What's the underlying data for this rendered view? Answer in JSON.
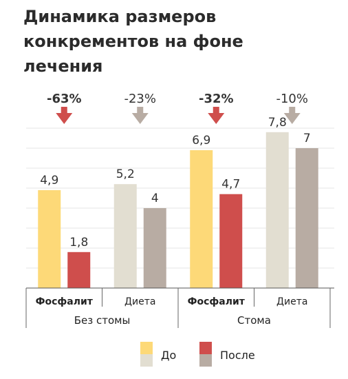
{
  "chart_data": {
    "type": "bar",
    "title": "Динамика размеров конкрементов на фоне лечения",
    "groups": [
      {
        "name": "Без стомы",
        "subgroups": [
          {
            "name": "Фосфалит",
            "bold": true,
            "values": [
              4.9,
              1.8
            ],
            "labels": [
              "4,9",
              "1,8"
            ],
            "change": "-63%",
            "change_bold": true,
            "arrow_color": "#cf4e4c"
          },
          {
            "name": "Диета",
            "bold": false,
            "values": [
              5.2,
              4.0
            ],
            "labels": [
              "5,2",
              "4"
            ],
            "change": "-23%",
            "change_bold": false,
            "arrow_color": "#b8aca3"
          }
        ]
      },
      {
        "name": "Стома",
        "subgroups": [
          {
            "name": "Фосфалит",
            "bold": true,
            "values": [
              6.9,
              4.7
            ],
            "labels": [
              "6,9",
              "4,7"
            ],
            "change": "-32%",
            "change_bold": true,
            "arrow_color": "#cf4e4c"
          },
          {
            "name": "Диета",
            "bold": false,
            "values": [
              7.8,
              7.0
            ],
            "labels": [
              "7,8",
              "7"
            ],
            "change": "-10%",
            "change_bold": false,
            "arrow_color": "#b8aca3"
          }
        ]
      }
    ],
    "colors": {
      "Фосфалит": {
        "before": "#fdd978",
        "after": "#cf4e4c"
      },
      "Диета": {
        "before": "#e2ded1",
        "after": "#b8aca3"
      }
    },
    "legend": [
      {
        "name": "До",
        "swatches": [
          "#fdd978",
          "#e2ded1"
        ]
      },
      {
        "name": "После",
        "swatches": [
          "#cf4e4c",
          "#b8aca3"
        ]
      }
    ],
    "legend_position": "bottom",
    "ylim": [
      0,
      8
    ],
    "grid": true
  }
}
